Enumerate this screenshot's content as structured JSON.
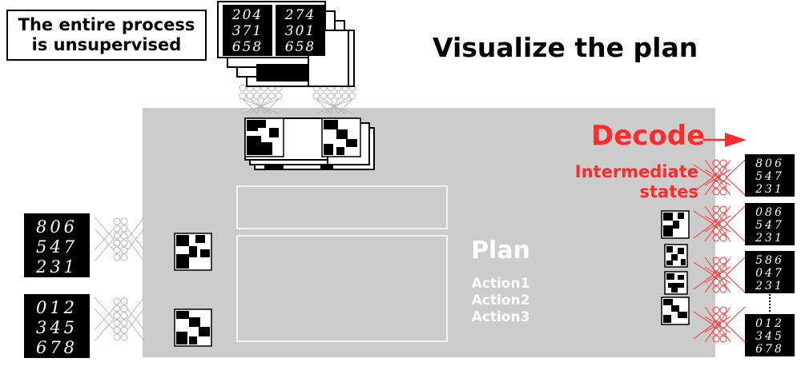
{
  "callout": {
    "line1": "The entire process",
    "line2": "is unsupervised"
  },
  "title": "Visualize the plan",
  "decode_label": "Decode",
  "intermediate_label": {
    "line1": "Intermediate",
    "line2": "states"
  },
  "plan_label": "Plan",
  "actions": [
    "Action1",
    "Action2",
    "Action3"
  ],
  "mnist_panels": {
    "top_left": [
      "204",
      "371",
      "658"
    ],
    "top_right": [
      "274",
      "301",
      "658"
    ],
    "left_initial": [
      "806",
      "547",
      "231"
    ],
    "left_goal": [
      "012",
      "345",
      "678"
    ],
    "right_1": [
      "806",
      "547",
      "231"
    ],
    "right_2": [
      "086",
      "547",
      "231"
    ],
    "right_3": [
      "586",
      "047",
      "231"
    ],
    "right_4": [
      "012",
      "345",
      "678"
    ]
  },
  "colors": {
    "accent": "#ff2a2a",
    "plan_area": "#cccccc",
    "plan_text": "#ffffff"
  }
}
